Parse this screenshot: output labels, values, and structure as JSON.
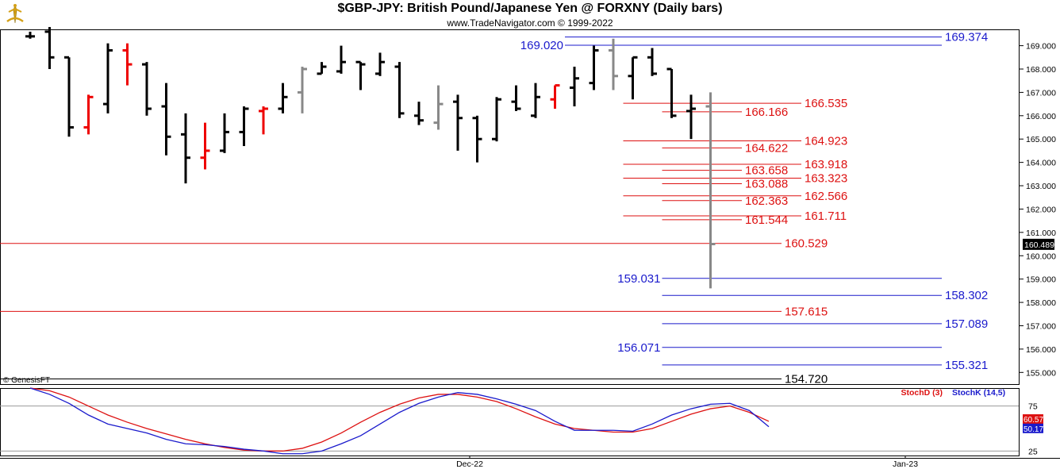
{
  "header": {
    "title": "$GBP-JPY:  British Pound/Japanese Yen @ FORXNY  (Daily bars)",
    "subtitle": "www.TradeNavigator.com © 1999-2022",
    "copyright": "© GenesisFT"
  },
  "chart_data": [
    {
      "type": "ohlc",
      "title": "$GBP-JPY:  British Pound/Japanese Yen @ FORXNY  (Daily bars)",
      "ylim": [
        154.5,
        169.7
      ],
      "y_ticks": [
        "155.000",
        "156.000",
        "157.000",
        "158.000",
        "159.000",
        "160.000",
        "161.000",
        "162.000",
        "163.000",
        "164.000",
        "165.000",
        "166.000",
        "167.000",
        "168.000",
        "169.000"
      ],
      "x_tick_labels": [
        "Dec-22",
        "Jan-23"
      ],
      "last_price": "160.489",
      "bars": [
        {
          "o": 169.4,
          "h": 169.6,
          "l": 169.3,
          "c": 169.4,
          "color": "black"
        },
        {
          "o": 169.6,
          "h": 169.8,
          "l": 168.0,
          "c": 168.5,
          "color": "black"
        },
        {
          "o": 168.5,
          "h": 168.5,
          "l": 165.1,
          "c": 165.5,
          "color": "black"
        },
        {
          "o": 165.5,
          "h": 166.9,
          "l": 165.2,
          "c": 166.8,
          "color": "red"
        },
        {
          "o": 166.5,
          "h": 169.1,
          "l": 166.1,
          "c": 168.8,
          "color": "black"
        },
        {
          "o": 168.8,
          "h": 169.1,
          "l": 167.3,
          "c": 168.2,
          "color": "red"
        },
        {
          "o": 168.2,
          "h": 168.3,
          "l": 166.0,
          "c": 166.3,
          "color": "black"
        },
        {
          "o": 166.4,
          "h": 167.4,
          "l": 164.3,
          "c": 165.1,
          "color": "black"
        },
        {
          "o": 165.2,
          "h": 166.1,
          "l": 163.1,
          "c": 164.2,
          "color": "black"
        },
        {
          "o": 164.2,
          "h": 165.7,
          "l": 163.7,
          "c": 164.5,
          "color": "red"
        },
        {
          "o": 164.5,
          "h": 166.1,
          "l": 164.4,
          "c": 165.3,
          "color": "black"
        },
        {
          "o": 165.3,
          "h": 166.4,
          "l": 164.7,
          "c": 166.3,
          "color": "black"
        },
        {
          "o": 166.2,
          "h": 166.4,
          "l": 165.2,
          "c": 166.3,
          "color": "red"
        },
        {
          "o": 166.3,
          "h": 167.4,
          "l": 166.1,
          "c": 166.8,
          "color": "black"
        },
        {
          "o": 167.0,
          "h": 168.1,
          "l": 166.1,
          "c": 168.0,
          "color": "gray"
        },
        {
          "o": 167.8,
          "h": 168.3,
          "l": 167.8,
          "c": 168.1,
          "color": "black"
        },
        {
          "o": 167.9,
          "h": 169.0,
          "l": 167.8,
          "c": 168.3,
          "color": "black"
        },
        {
          "o": 168.3,
          "h": 168.3,
          "l": 167.1,
          "c": 168.2,
          "color": "black"
        },
        {
          "o": 167.8,
          "h": 168.7,
          "l": 167.7,
          "c": 168.3,
          "color": "black"
        },
        {
          "o": 168.1,
          "h": 168.3,
          "l": 165.9,
          "c": 166.1,
          "color": "black"
        },
        {
          "o": 166.0,
          "h": 166.6,
          "l": 165.6,
          "c": 165.8,
          "color": "black"
        },
        {
          "o": 165.7,
          "h": 167.3,
          "l": 165.4,
          "c": 166.5,
          "color": "gray"
        },
        {
          "o": 166.6,
          "h": 166.9,
          "l": 164.5,
          "c": 165.9,
          "color": "black"
        },
        {
          "o": 165.9,
          "h": 166.0,
          "l": 164.0,
          "c": 165.0,
          "color": "black"
        },
        {
          "o": 165.0,
          "h": 166.8,
          "l": 164.9,
          "c": 166.7,
          "color": "black"
        },
        {
          "o": 166.6,
          "h": 167.3,
          "l": 166.2,
          "c": 166.3,
          "color": "black"
        },
        {
          "o": 166.0,
          "h": 167.4,
          "l": 165.9,
          "c": 166.8,
          "color": "black"
        },
        {
          "o": 166.7,
          "h": 167.3,
          "l": 166.3,
          "c": 167.3,
          "color": "red"
        },
        {
          "o": 167.2,
          "h": 168.1,
          "l": 166.4,
          "c": 167.6,
          "color": "black"
        },
        {
          "o": 167.4,
          "h": 169.0,
          "l": 167.1,
          "c": 168.8,
          "color": "black"
        },
        {
          "o": 168.8,
          "h": 169.3,
          "l": 167.1,
          "c": 167.7,
          "color": "gray"
        },
        {
          "o": 167.7,
          "h": 168.5,
          "l": 166.7,
          "c": 168.5,
          "color": "black"
        },
        {
          "o": 168.5,
          "h": 168.9,
          "l": 167.7,
          "c": 167.8,
          "color": "black"
        },
        {
          "o": 168.0,
          "h": 168.0,
          "l": 165.9,
          "c": 166.0,
          "color": "black"
        },
        {
          "o": 166.2,
          "h": 166.9,
          "l": 165.0,
          "c": 166.3,
          "color": "black"
        },
        {
          "o": 166.4,
          "h": 167.0,
          "l": 158.6,
          "c": 160.5,
          "color": "gray"
        }
      ],
      "levels": [
        {
          "label": "169.374",
          "value": 169.374,
          "color": "#1a1acc",
          "x_start_bar": 28
        },
        {
          "label": "169.020",
          "value": 169.02,
          "color": "#1a1acc",
          "x_start_bar": 28,
          "label_left": true
        },
        {
          "label": "166.535",
          "value": 166.535,
          "color": "#dd1111",
          "x_start_bar": 31
        },
        {
          "label": "166.166",
          "value": 166.166,
          "color": "#dd1111",
          "x_start_bar": 33
        },
        {
          "label": "164.923",
          "value": 164.923,
          "color": "#dd1111",
          "x_start_bar": 31
        },
        {
          "label": "164.622",
          "value": 164.622,
          "color": "#dd1111",
          "x_start_bar": 33
        },
        {
          "label": "163.918",
          "value": 163.918,
          "color": "#dd1111",
          "x_start_bar": 31
        },
        {
          "label": "163.658",
          "value": 163.658,
          "color": "#dd1111",
          "x_start_bar": 33
        },
        {
          "label": "163.323",
          "value": 163.323,
          "color": "#dd1111",
          "x_start_bar": 31
        },
        {
          "label": "163.088",
          "value": 163.088,
          "color": "#dd1111",
          "x_start_bar": 33
        },
        {
          "label": "162.566",
          "value": 162.566,
          "color": "#dd1111",
          "x_start_bar": 31
        },
        {
          "label": "162.363",
          "value": 162.363,
          "color": "#dd1111",
          "x_start_bar": 33
        },
        {
          "label": "161.711",
          "value": 161.711,
          "color": "#dd1111",
          "x_start_bar": 31
        },
        {
          "label": "161.544",
          "value": 161.544,
          "color": "#dd1111",
          "x_start_bar": 33
        },
        {
          "label": "160.529",
          "value": 160.529,
          "color": "#dd1111",
          "x_start_bar": -1
        },
        {
          "label": "159.031",
          "value": 159.031,
          "color": "#1a1acc",
          "x_start_bar": 33,
          "label_left": true
        },
        {
          "label": "158.302",
          "value": 158.302,
          "color": "#1a1acc",
          "x_start_bar": 33
        },
        {
          "label": "157.615",
          "value": 157.615,
          "color": "#dd1111",
          "x_start_bar": -1
        },
        {
          "label": "157.089",
          "value": 157.089,
          "color": "#1a1acc",
          "x_start_bar": 33
        },
        {
          "label": "156.071",
          "value": 156.071,
          "color": "#1a1acc",
          "x_start_bar": 33,
          "label_left": true
        },
        {
          "label": "155.321",
          "value": 155.321,
          "color": "#1a1acc",
          "x_start_bar": 33
        },
        {
          "label": "154.720",
          "value": 154.72,
          "color": "#000000",
          "x_start_bar": -1
        }
      ]
    },
    {
      "type": "line",
      "ylim": [
        20,
        95
      ],
      "y_ticks": [
        "75",
        "25"
      ],
      "series": [
        {
          "name": "StochD (3)",
          "color": "#dd1111",
          "values": [
            95,
            92,
            85,
            75,
            65,
            57,
            50,
            44,
            38,
            33,
            29,
            26,
            25,
            25,
            28,
            35,
            45,
            57,
            68,
            77,
            84,
            88,
            88,
            85,
            80,
            72,
            63,
            55,
            50,
            48,
            46,
            46,
            50,
            58,
            66,
            72,
            75,
            68,
            58
          ],
          "last": "60.57"
        },
        {
          "name": "StochK (14,5)",
          "color": "#1a1acc",
          "values": [
            95,
            88,
            78,
            65,
            55,
            50,
            45,
            38,
            33,
            32,
            30,
            27,
            25,
            22,
            22,
            25,
            33,
            42,
            55,
            68,
            78,
            85,
            90,
            88,
            83,
            77,
            70,
            58,
            48,
            48,
            48,
            47,
            55,
            65,
            72,
            77,
            78,
            70,
            52
          ],
          "last": "50.17"
        }
      ]
    }
  ]
}
